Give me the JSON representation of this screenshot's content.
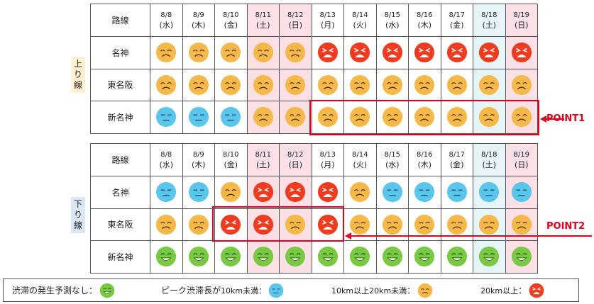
{
  "colors": {
    "green": "#7ac943",
    "blue": "#5bc6ec",
    "orange": "#f7b84a",
    "red": "#ef3b1f",
    "highlight": "#e3001b",
    "weekend_bg": "#fbe0e6",
    "holiday_bg": "#e6f6f8"
  },
  "header": {
    "route_label": "路線"
  },
  "days": [
    {
      "date": "8/8",
      "wd": "(水)",
      "kind": "normal"
    },
    {
      "date": "8/9",
      "wd": "(木)",
      "kind": "normal"
    },
    {
      "date": "8/10",
      "wd": "(金)",
      "kind": "normal"
    },
    {
      "date": "8/11",
      "wd": "(土)",
      "kind": "weekend"
    },
    {
      "date": "8/12",
      "wd": "(日)",
      "kind": "weekend"
    },
    {
      "date": "8/13",
      "wd": "(月)",
      "kind": "normal"
    },
    {
      "date": "8/14",
      "wd": "(火)",
      "kind": "normal"
    },
    {
      "date": "8/15",
      "wd": "(水)",
      "kind": "normal"
    },
    {
      "date": "8/16",
      "wd": "(木)",
      "kind": "normal"
    },
    {
      "date": "8/17",
      "wd": "(金)",
      "kind": "normal"
    },
    {
      "date": "8/18",
      "wd": "(土)",
      "kind": "holiday"
    },
    {
      "date": "8/19",
      "wd": "(日)",
      "kind": "weekend"
    }
  ],
  "up": {
    "label": [
      "上",
      "り",
      "線"
    ],
    "routes": [
      {
        "name": "名神",
        "levels": [
          "orange",
          "orange",
          "orange",
          "orange",
          "orange",
          "red",
          "red",
          "red",
          "red",
          "red",
          "red",
          "red"
        ]
      },
      {
        "name": "東名阪",
        "levels": [
          "orange",
          "orange",
          "orange",
          "orange",
          "orange",
          "orange",
          "orange",
          "orange",
          "orange",
          "orange",
          "orange",
          "orange"
        ]
      },
      {
        "name": "新名神",
        "levels": [
          "blue",
          "blue",
          "blue",
          "orange",
          "orange",
          "orange",
          "orange",
          "orange",
          "orange",
          "orange",
          "orange",
          "orange"
        ]
      }
    ]
  },
  "down": {
    "label": [
      "下",
      "り",
      "線"
    ],
    "routes": [
      {
        "name": "名神",
        "levels": [
          "blue",
          "blue",
          "orange",
          "red",
          "red",
          "red",
          "orange",
          "blue",
          "blue",
          "blue",
          "blue",
          "blue"
        ]
      },
      {
        "name": "東名阪",
        "levels": [
          "orange",
          "orange",
          "red",
          "red",
          "orange",
          "red",
          "orange",
          "orange",
          "orange",
          "orange",
          "orange",
          "orange"
        ]
      },
      {
        "name": "新名神",
        "levels": [
          "green",
          "green",
          "green",
          "green",
          "green",
          "green",
          "green",
          "green",
          "green",
          "green",
          "green",
          "green"
        ]
      }
    ]
  },
  "points": {
    "p1": "POINT1",
    "p2": "POINT2"
  },
  "legend": {
    "none": "渋滞の発生予測なし：",
    "under10_a": "ピーク渋滞長が",
    "under10_b": "10km未満：",
    "mid_a": "10km以上20km未満",
    "mid_b": "：",
    "over20_a": "20km以上",
    "over20_b": "："
  }
}
